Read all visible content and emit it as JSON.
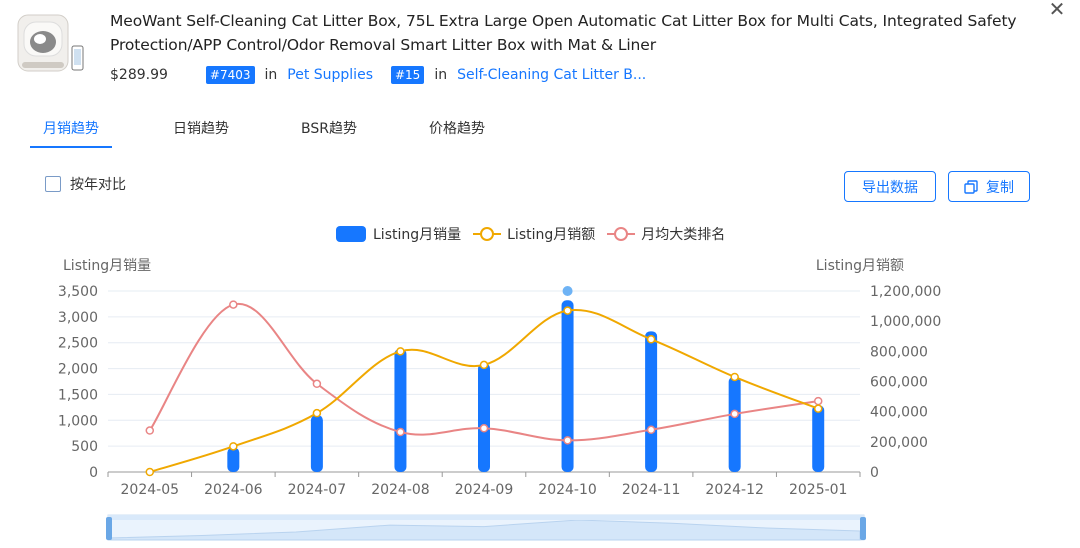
{
  "product": {
    "title": "MeoWant Self-Cleaning Cat Litter Box, 75L Extra Large Open Automatic Cat Litter Box for Multi Cats, Integrated Safety Protection/APP Control/Odor Removal Smart Litter Box with Mat & Liner",
    "price": "$289.99",
    "rank1": "#7403",
    "rank1_in": "in",
    "rank1_category": "Pet Supplies",
    "rank2": "#15",
    "rank2_in": "in",
    "rank2_category": "Self-Cleaning Cat Litter B..."
  },
  "tabs": [
    {
      "label": "月销趋势",
      "active": true
    },
    {
      "label": "日销趋势",
      "active": false
    },
    {
      "label": "BSR趋势",
      "active": false
    },
    {
      "label": "价格趋势",
      "active": false
    }
  ],
  "controls": {
    "yoy_label": "按年对比",
    "yoy_checked": false,
    "export_label": "导出数据",
    "copy_label": "复制"
  },
  "legend": {
    "sales_label": "Listing月销量",
    "revenue_label": "Listing月销额",
    "rank_label": "月均大类排名"
  },
  "colors": {
    "accent": "#1677ff",
    "bar": "#1677ff",
    "revenue_line": "#f0a800",
    "rank_line": "#e98585"
  },
  "icons": {
    "close": "close-icon",
    "copy": "copy-icon",
    "product": "product-thumbnail"
  },
  "chart_data": {
    "type": "bar",
    "categories": [
      "2024-05",
      "2024-06",
      "2024-07",
      "2024-08",
      "2024-09",
      "2024-10",
      "2024-11",
      "2024-12",
      "2025-01"
    ],
    "series": [
      {
        "name": "Listing月销量",
        "type": "bar",
        "axis": "left",
        "values": [
          0,
          470,
          1100,
          2380,
          2100,
          3320,
          2720,
          1840,
          1290
        ]
      },
      {
        "name": "Listing月销额",
        "type": "line",
        "axis": "right",
        "values": [
          0,
          170000,
          390000,
          800000,
          710000,
          1070000,
          880000,
          630000,
          420000
        ]
      },
      {
        "name": "月均大类排名",
        "type": "line",
        "axis": "right",
        "values": [
          275000,
          1110000,
          585000,
          265000,
          290000,
          210000,
          280000,
          385000,
          470000
        ]
      }
    ],
    "ylabel_left": "Listing月销量",
    "ylabel_right": "Listing月销额",
    "ylim_left": [
      0,
      3500
    ],
    "ylim_right": [
      0,
      1200000
    ],
    "yticks_left": [
      "0",
      "500",
      "1,000",
      "1,500",
      "2,000",
      "2,500",
      "3,000",
      "3,500"
    ],
    "yticks_right": [
      "0",
      "200,000",
      "400,000",
      "600,000",
      "800,000",
      "1,000,000",
      "1,200,000"
    ],
    "highlight_index": 5,
    "grid": true,
    "legend_position": "top-center"
  }
}
